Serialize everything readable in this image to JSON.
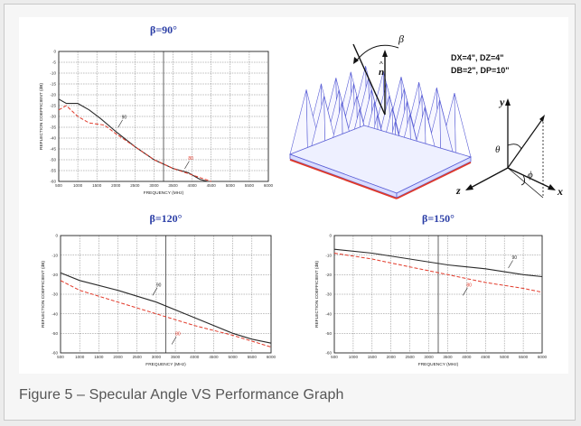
{
  "caption": "Figure 5 – Specular Angle VS Performance Graph",
  "colors": {
    "black_curve": "#2a2a2a",
    "red_curve": "#e23a2a",
    "title": "#2b3ea6",
    "pyramids": "#5a5fd6",
    "base_red": "#e03a2a"
  },
  "chart_data": [
    {
      "type": "line",
      "title": "β=90°",
      "xlabel": "FREQUENCY (MHz)",
      "ylabel": "REFLECTION COEFFICIENT (dB)",
      "xlim": [
        500,
        6000
      ],
      "ylim": [
        -60,
        0
      ],
      "x_ticks": [
        "500",
        "1000",
        "1500",
        "2000",
        "2500",
        "3000",
        "3500",
        "4000",
        "4500",
        "5000",
        "5500",
        "6000"
      ],
      "y_ticks": [
        "0",
        "-5",
        "-10",
        "-15",
        "-20",
        "-25",
        "-30",
        "-35",
        "-40",
        "-45",
        "-50",
        "-55",
        "-60"
      ],
      "series": [
        {
          "name": "90",
          "color": "#2a2a2a",
          "dash": false,
          "x": [
            500,
            700,
            1000,
            1300,
            1600,
            2000,
            2500,
            3000,
            3500,
            3900,
            4200,
            4400
          ],
          "y": [
            -22,
            -24,
            -24,
            -27,
            -31,
            -37,
            -44,
            -50,
            -54,
            -56,
            -59,
            -60
          ]
        },
        {
          "name": "80",
          "color": "#e23a2a",
          "dash": true,
          "x": [
            500,
            700,
            1000,
            1300,
            1700,
            2000,
            2500,
            3000,
            3500,
            4000,
            4500
          ],
          "y": [
            -27,
            -25,
            -30,
            -33,
            -34,
            -38,
            -44,
            -50,
            -54,
            -57,
            -60
          ]
        }
      ],
      "annotations": [
        {
          "text": "90",
          "x": 2150,
          "y": -31,
          "color": "#2a2a2a"
        },
        {
          "text": "80",
          "x": 3900,
          "y": -50,
          "color": "#e23a2a"
        }
      ]
    },
    {
      "type": "line",
      "title": "β=120°",
      "xlabel": "FREQUENCY (MHz)",
      "ylabel": "REFLECTION COEFFICIENT (dB)",
      "xlim": [
        500,
        6000
      ],
      "ylim": [
        -60,
        0
      ],
      "x_ticks": [
        "500",
        "1000",
        "1500",
        "2000",
        "2500",
        "3000",
        "3500",
        "4000",
        "4500",
        "5000",
        "5500",
        "6000"
      ],
      "y_ticks": [
        "0",
        "-10",
        "-20",
        "-30",
        "-40",
        "-50",
        "-60"
      ],
      "series": [
        {
          "name": "90",
          "color": "#2a2a2a",
          "dash": false,
          "x": [
            500,
            1000,
            2000,
            3000,
            4000,
            5000,
            5500,
            6000
          ],
          "y": [
            -19,
            -23,
            -28,
            -34,
            -42,
            -50,
            -53,
            -55
          ]
        },
        {
          "name": "80",
          "color": "#e23a2a",
          "dash": true,
          "x": [
            500,
            1000,
            2000,
            3000,
            4000,
            5000,
            5500,
            6000
          ],
          "y": [
            -23,
            -28,
            -34,
            -40,
            -46,
            -51,
            -54,
            -57
          ]
        }
      ],
      "annotations": [
        {
          "text": "90",
          "x": 3000,
          "y": -26,
          "color": "#2a2a2a"
        },
        {
          "text": "80",
          "x": 3500,
          "y": -51,
          "color": "#e23a2a"
        }
      ]
    },
    {
      "type": "line",
      "title": "β=150°",
      "xlabel": "FREQUENCY (MHz)",
      "ylabel": "REFLECTION COEFFICIENT (dB)",
      "xlim": [
        500,
        6000
      ],
      "ylim": [
        -60,
        0
      ],
      "x_ticks": [
        "500",
        "1000",
        "1500",
        "2000",
        "2500",
        "3000",
        "3500",
        "4000",
        "4500",
        "5000",
        "5500",
        "6000"
      ],
      "y_ticks": [
        "0",
        "-10",
        "-20",
        "-30",
        "-40",
        "-50",
        "-60"
      ],
      "series": [
        {
          "name": "90",
          "color": "#2a2a2a",
          "dash": false,
          "x": [
            500,
            1500,
            2500,
            3500,
            4500,
            5500,
            6000
          ],
          "y": [
            -7,
            -9,
            -12,
            -15,
            -17,
            -20,
            -21
          ]
        },
        {
          "name": "80",
          "color": "#e23a2a",
          "dash": true,
          "x": [
            500,
            1500,
            2500,
            3500,
            4500,
            5500,
            6000
          ],
          "y": [
            -9,
            -12,
            -16,
            -20,
            -24,
            -27,
            -29
          ]
        }
      ],
      "annotations": [
        {
          "text": "90",
          "x": 5200,
          "y": -12,
          "color": "#2a2a2a"
        },
        {
          "text": "80",
          "x": 4000,
          "y": -26,
          "color": "#e23a2a"
        }
      ]
    }
  ],
  "diagram": {
    "params_line1": "DX=4\",  DZ=4\"",
    "params_line2": "DB=2\",  DP=10\"",
    "beta_label": "β",
    "normal_label": "n",
    "axis_x": "x",
    "axis_y": "y",
    "axis_z": "z",
    "theta_label": "θ",
    "phi_label": "ϕ"
  }
}
